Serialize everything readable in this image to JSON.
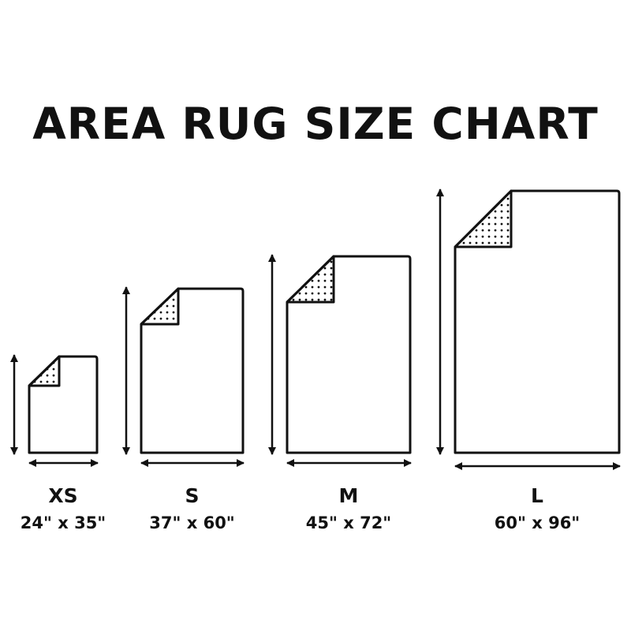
{
  "title": "AREA RUG SIZE CHART",
  "colors": {
    "ink": "#111111",
    "background": "#ffffff"
  },
  "rugs": [
    {
      "size": "XS",
      "dimensions": "24\" x 35\"",
      "width_in": 24,
      "length_in": 35
    },
    {
      "size": "S",
      "dimensions": "37\" x 60\"",
      "width_in": 37,
      "length_in": 60
    },
    {
      "size": "M",
      "dimensions": "45\" x 72\"",
      "width_in": 45,
      "length_in": 72
    },
    {
      "size": "L",
      "dimensions": "60\" x 96\"",
      "width_in": 60,
      "length_in": 96
    }
  ]
}
